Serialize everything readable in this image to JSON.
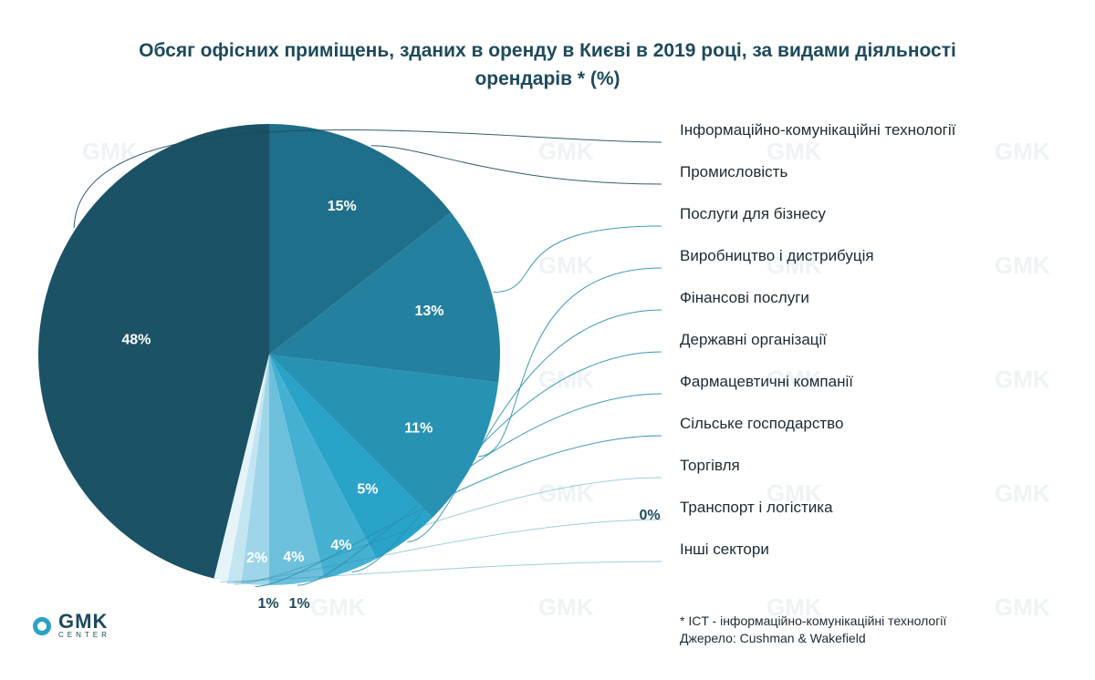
{
  "title": "Обсяг офісних приміщень, зданих в оренду в Києві в 2019 році, за видами діяльності орендарів * (%)",
  "chart_data": {
    "type": "pie",
    "title": "Обсяг офісних приміщень, зданих в оренду в Києві в 2019 році, за видами діяльності орендарів * (%)",
    "slices": [
      {
        "label": "Інформаційно-комунікаційні технології",
        "value": 48,
        "display": "48%",
        "color": "#1b5266"
      },
      {
        "label": "Промисловість",
        "value": 15,
        "display": "15%",
        "color": "#1f6e8a"
      },
      {
        "label": "Послуги для бізнесу",
        "value": 13,
        "display": "13%",
        "color": "#24809f"
      },
      {
        "label": "Виробництво і дистрибуція",
        "value": 11,
        "display": "11%",
        "color": "#2792b3"
      },
      {
        "label": "Фінансові послуги",
        "value": 5,
        "display": "5%",
        "color": "#29a3c8"
      },
      {
        "label": "Державні організації",
        "value": 4,
        "display": "4%",
        "color": "#45b0d2"
      },
      {
        "label": "Фармацевтичні компанії",
        "value": 4,
        "display": "4%",
        "color": "#6dc0dc"
      },
      {
        "label": "Сільське господарство",
        "value": 2,
        "display": "2%",
        "color": "#9ed5e8"
      },
      {
        "label": "Торгівля",
        "value": 1,
        "display": "1%",
        "color": "#c3e5f1"
      },
      {
        "label": "Транспорт і логістика",
        "value": 0,
        "display": "0%",
        "color": "#ddf0f7"
      },
      {
        "label": "Інші сектори",
        "value": 1,
        "display": "1%",
        "color": "#e6f4f9"
      }
    ],
    "legend_placement": "right"
  },
  "footnote": {
    "line1": "* ICT - інформаційно-комунікаційні технології",
    "line2": "Джерело: Cushman & Wakefield"
  },
  "logo": {
    "name": "GMK",
    "sub": "CENTER"
  },
  "colors": {
    "title": "#1d4a5c",
    "leader": "#2a8fb0",
    "label_on_slice": "#ffffff",
    "label_outside": "#1d4a5c"
  }
}
